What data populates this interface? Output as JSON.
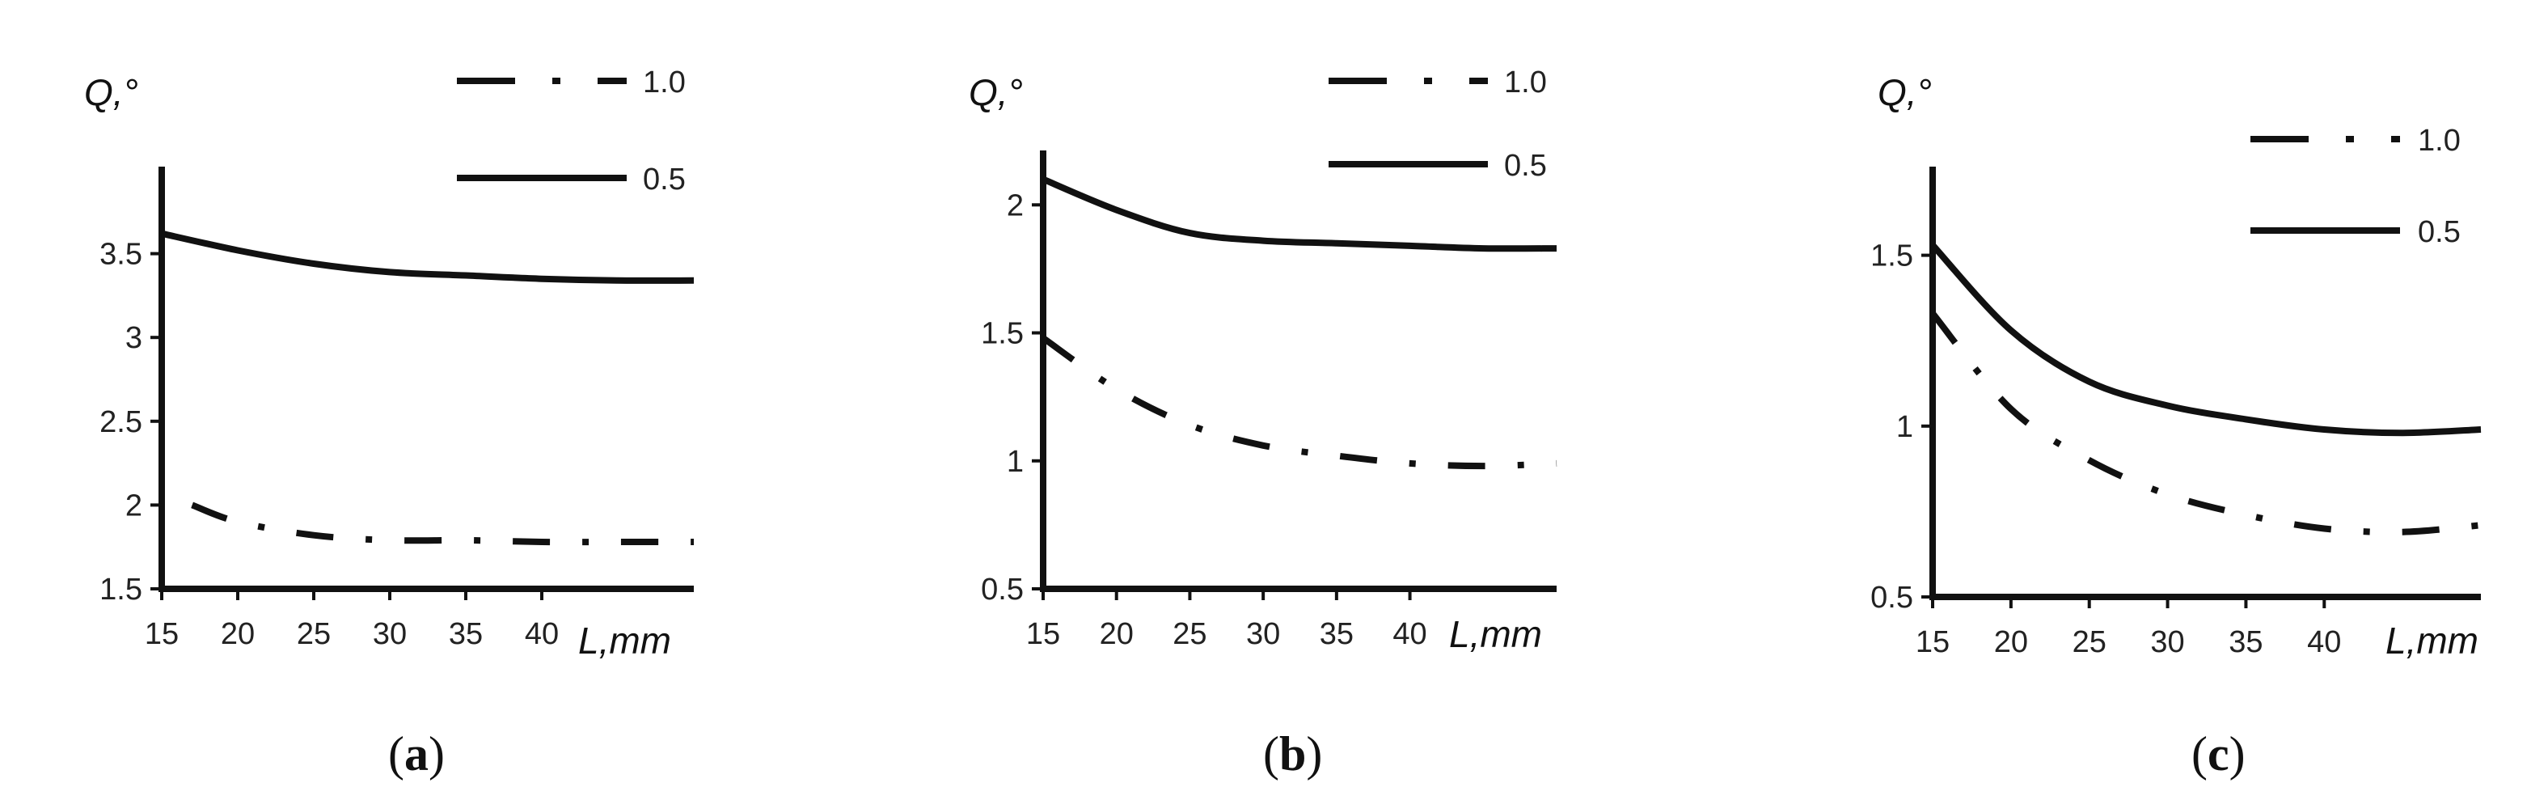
{
  "chart_data": [
    {
      "panel": "(a)",
      "type": "line",
      "ylabel": "Q,°",
      "xlabel": "L,mm",
      "xticks": [
        "15",
        "20",
        "25",
        "30",
        "35",
        "40"
      ],
      "yticks": [
        "1.5",
        "2",
        "2.5",
        "3",
        "3.5"
      ],
      "xlim": [
        15,
        50
      ],
      "ylim": [
        1.5,
        4.0
      ],
      "legend_position": "top-right",
      "series": [
        {
          "name": "1.0",
          "style": "dash-dot",
          "x": [
            17,
            20,
            25,
            30,
            35,
            40,
            45,
            50
          ],
          "y": [
            2.0,
            1.9,
            1.82,
            1.79,
            1.79,
            1.78,
            1.78,
            1.78
          ]
        },
        {
          "name": "0.5",
          "style": "solid",
          "x": [
            15,
            20,
            25,
            30,
            35,
            40,
            45,
            50
          ],
          "y": [
            3.62,
            3.52,
            3.44,
            3.39,
            3.37,
            3.35,
            3.34,
            3.34
          ]
        }
      ]
    },
    {
      "panel": "(b)",
      "type": "line",
      "ylabel": "Q,°",
      "xlabel": "L,mm",
      "xticks": [
        "15",
        "20",
        "25",
        "30",
        "35",
        "40"
      ],
      "yticks": [
        "0.5",
        "1",
        "1.5",
        "2"
      ],
      "xlim": [
        15,
        50
      ],
      "ylim": [
        0.5,
        2.2
      ],
      "legend_position": "top-right",
      "series": [
        {
          "name": "1.0",
          "style": "dash-dot",
          "x": [
            15,
            20,
            25,
            30,
            35,
            40,
            45,
            50
          ],
          "y": [
            1.48,
            1.28,
            1.14,
            1.06,
            1.02,
            0.99,
            0.98,
            0.99
          ]
        },
        {
          "name": "0.5",
          "style": "solid",
          "x": [
            15,
            20,
            25,
            30,
            35,
            40,
            45,
            50
          ],
          "y": [
            2.1,
            1.98,
            1.89,
            1.86,
            1.85,
            1.84,
            1.83,
            1.83
          ]
        }
      ]
    },
    {
      "panel": "(c)",
      "type": "line",
      "ylabel": "Q,°",
      "xlabel": "L,mm",
      "xticks": [
        "15",
        "20",
        "25",
        "30",
        "35",
        "40"
      ],
      "yticks": [
        "0.5",
        "1",
        "1.5"
      ],
      "xlim": [
        15,
        50
      ],
      "ylim": [
        0.5,
        1.75
      ],
      "legend_position": "top-right",
      "series": [
        {
          "name": "1.0",
          "style": "dash-dot",
          "x": [
            15,
            20,
            25,
            30,
            35,
            40,
            45,
            50
          ],
          "y": [
            1.33,
            1.05,
            0.9,
            0.8,
            0.74,
            0.7,
            0.69,
            0.71
          ]
        },
        {
          "name": "0.5",
          "style": "solid",
          "x": [
            15,
            20,
            25,
            30,
            35,
            40,
            45,
            50
          ],
          "y": [
            1.53,
            1.28,
            1.13,
            1.06,
            1.02,
            0.99,
            0.98,
            0.99
          ]
        }
      ]
    }
  ]
}
